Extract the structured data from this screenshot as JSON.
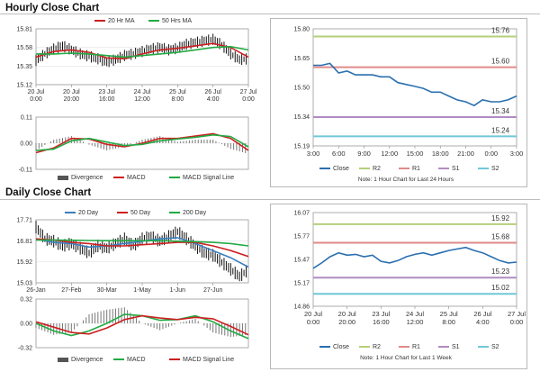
{
  "sections": {
    "hourly": {
      "title": "Hourly Close Chart"
    },
    "daily": {
      "title": "Daily Close Chart"
    }
  },
  "chart_data": [
    {
      "id": "hourly_price_ma",
      "type": "line",
      "y_ticks": [
        "15.81",
        "15.58",
        "15.35",
        "15.12"
      ],
      "ylim": [
        15.12,
        15.81
      ],
      "x_ticks": [
        [
          "20 Jul",
          "0:00"
        ],
        [
          "20 Jul",
          "20:00"
        ],
        [
          "23 Jul",
          "16:00"
        ],
        [
          "24 Jul",
          "12:00"
        ],
        [
          "25 Jul",
          "8:00"
        ],
        [
          "26 Jul",
          "4:00"
        ],
        [
          "27 Jul",
          "0:00"
        ]
      ],
      "x_tick_pos": [
        0,
        1,
        2,
        3,
        4,
        5,
        6
      ],
      "legend": [
        "20 Hr MA",
        "50 Hrs MA"
      ],
      "series": [
        {
          "name": "20 Hr MA",
          "color": "#cc2020",
          "x": [
            0,
            0.5,
            1,
            1.5,
            2,
            2.5,
            3,
            3.5,
            4,
            4.5,
            5,
            5.5,
            6
          ],
          "values": [
            15.46,
            15.53,
            15.55,
            15.52,
            15.45,
            15.44,
            15.5,
            15.55,
            15.57,
            15.6,
            15.63,
            15.58,
            15.46
          ]
        },
        {
          "name": "50 Hrs MA",
          "color": "#22aa44",
          "x": [
            0,
            0.5,
            1,
            1.5,
            2,
            2.5,
            3,
            3.5,
            4,
            4.5,
            5,
            5.5,
            6
          ],
          "values": [
            15.5,
            15.5,
            15.51,
            15.5,
            15.48,
            15.46,
            15.48,
            15.5,
            15.52,
            15.55,
            15.58,
            15.59,
            15.55
          ]
        }
      ],
      "price": {
        "x": [
          0,
          0.25,
          0.5,
          0.75,
          1,
          1.25,
          1.5,
          1.75,
          2,
          2.25,
          2.5,
          2.75,
          3,
          3.25,
          3.5,
          3.75,
          4,
          4.25,
          4.5,
          4.75,
          5,
          5.25,
          5.5,
          5.75,
          6
        ],
        "values": [
          15.42,
          15.5,
          15.56,
          15.6,
          15.55,
          15.5,
          15.47,
          15.44,
          15.4,
          15.43,
          15.48,
          15.5,
          15.53,
          15.56,
          15.58,
          15.55,
          15.57,
          15.62,
          15.64,
          15.66,
          15.68,
          15.61,
          15.5,
          15.43,
          15.44
        ]
      }
    },
    {
      "id": "hourly_macd",
      "type": "line",
      "y_ticks": [
        "0.11",
        "0.00",
        "-0.11"
      ],
      "ylim": [
        -0.11,
        0.11
      ],
      "legend": [
        "Divergence",
        "MACD",
        "MACD Signal Line"
      ],
      "x": [
        0,
        0.5,
        1,
        1.5,
        2,
        2.5,
        3,
        3.5,
        4,
        4.5,
        5,
        5.5,
        6
      ],
      "series": [
        {
          "name": "MACD",
          "color": "#cc2020",
          "values": [
            -0.04,
            -0.02,
            0.02,
            0.018,
            -0.005,
            -0.015,
            0.0,
            0.02,
            0.02,
            0.03,
            0.04,
            0.02,
            -0.03
          ]
        },
        {
          "name": "MACD Signal Line",
          "color": "#22aa44",
          "values": [
            -0.03,
            -0.025,
            0.01,
            0.02,
            0.005,
            -0.01,
            -0.005,
            0.01,
            0.018,
            0.025,
            0.035,
            0.028,
            -0.015
          ]
        }
      ]
    },
    {
      "id": "hourly_pivot",
      "type": "line",
      "y_ticks": [
        "15.80",
        "15.65",
        "15.50",
        "15.34",
        "15.19"
      ],
      "ylim": [
        15.19,
        15.8
      ],
      "x_ticks": [
        "3:00",
        "6:00",
        "9:00",
        "12:00",
        "15:00",
        "18:00",
        "21:00",
        "0:00",
        "3:00"
      ],
      "levels": [
        {
          "name": "R2",
          "value": 15.76,
          "label": "15.76",
          "color": "#b5cf7a"
        },
        {
          "name": "R1",
          "value": 15.6,
          "label": "15.60",
          "color": "#e08a8a"
        },
        {
          "name": "S1",
          "value": 15.34,
          "label": "15.34",
          "color": "#b08cc0"
        },
        {
          "name": "S2",
          "value": 15.24,
          "label": "15.24",
          "color": "#6fc8d8"
        }
      ],
      "close": {
        "name": "Close",
        "color": "#2a6fb0",
        "x": [
          0,
          0.33,
          0.66,
          1,
          1.33,
          1.66,
          2,
          2.33,
          2.66,
          3,
          3.33,
          3.66,
          4,
          4.33,
          4.66,
          5,
          5.33,
          5.66,
          6,
          6.33,
          6.66,
          7,
          7.33,
          7.66,
          8
        ],
        "values": [
          15.61,
          15.61,
          15.62,
          15.57,
          15.58,
          15.56,
          15.56,
          15.56,
          15.55,
          15.55,
          15.52,
          15.51,
          15.5,
          15.49,
          15.47,
          15.47,
          15.45,
          15.43,
          15.42,
          15.4,
          15.43,
          15.42,
          15.42,
          15.43,
          15.45
        ]
      },
      "legend": [
        "Close",
        "R2",
        "R1",
        "S1",
        "S2"
      ],
      "note": "Note: 1 Hour Chart for Last 24 Hours"
    },
    {
      "id": "daily_price_ma",
      "type": "line",
      "y_ticks": [
        "17.71",
        "16.81",
        "15.92",
        "15.03"
      ],
      "ylim": [
        15.03,
        17.71
      ],
      "x_ticks": [
        "26-Jan",
        "27-Feb",
        "30-Mar",
        "1-May",
        "1-Jun",
        "27-Jun"
      ],
      "x_tick_pos": [
        0,
        1,
        2,
        3,
        4,
        5
      ],
      "legend": [
        "20 Day",
        "50 Day",
        "200 Day"
      ],
      "series": [
        {
          "name": "20 Day",
          "color": "#3a7fc0",
          "x": [
            0,
            0.5,
            1,
            1.5,
            2,
            2.5,
            3,
            3.5,
            4,
            4.5,
            5,
            5.5,
            6
          ],
          "values": [
            16.9,
            16.75,
            16.7,
            16.55,
            16.6,
            16.7,
            16.8,
            16.9,
            16.95,
            16.7,
            16.4,
            16.1,
            15.7
          ]
        },
        {
          "name": "50 Day",
          "color": "#cc2020",
          "x": [
            0,
            0.5,
            1,
            1.5,
            2,
            2.5,
            3,
            3.5,
            4,
            4.5,
            5,
            5.5,
            6
          ],
          "values": [
            16.9,
            16.85,
            16.75,
            16.7,
            16.6,
            16.6,
            16.65,
            16.7,
            16.75,
            16.75,
            16.6,
            16.4,
            16.15
          ]
        },
        {
          "name": "200 Day",
          "color": "#22aa44",
          "x": [
            0,
            0.5,
            1,
            1.5,
            2,
            2.5,
            3,
            3.5,
            4,
            4.5,
            5,
            5.5,
            6
          ],
          "values": [
            16.85,
            16.85,
            16.84,
            16.83,
            16.82,
            16.82,
            16.82,
            16.82,
            16.8,
            16.78,
            16.75,
            16.7,
            16.6
          ]
        }
      ],
      "price": {
        "x": [
          0,
          0.25,
          0.5,
          0.75,
          1,
          1.25,
          1.5,
          1.75,
          2,
          2.25,
          2.5,
          2.75,
          3,
          3.25,
          3.5,
          3.75,
          4,
          4.25,
          4.5,
          4.75,
          5,
          5.25,
          5.5,
          5.75,
          6
        ],
        "values": [
          17.4,
          16.9,
          16.8,
          16.6,
          16.7,
          16.5,
          16.3,
          16.6,
          16.5,
          16.7,
          16.9,
          16.6,
          16.9,
          17.0,
          16.8,
          17.0,
          17.2,
          16.9,
          16.6,
          16.3,
          16.2,
          15.9,
          15.6,
          15.3,
          15.6
        ]
      }
    },
    {
      "id": "daily_macd",
      "type": "line",
      "y_ticks": [
        "0.32",
        "0.00",
        "-0.32"
      ],
      "ylim": [
        -0.32,
        0.32
      ],
      "legend": [
        "Divergence",
        "MACD",
        "MACD Signal Line"
      ],
      "x": [
        0,
        0.5,
        1,
        1.5,
        2,
        2.5,
        3,
        3.5,
        4,
        4.5,
        5,
        5.5,
        6
      ],
      "series": [
        {
          "name": "MACD",
          "color": "#22aa44",
          "values": [
            0.0,
            -0.1,
            -0.16,
            -0.1,
            0.0,
            0.12,
            0.1,
            0.04,
            0.05,
            0.1,
            0.02,
            -0.1,
            -0.2
          ]
        },
        {
          "name": "MACD Signal Line",
          "color": "#cc2020",
          "values": [
            0.02,
            -0.05,
            -0.12,
            -0.14,
            -0.06,
            0.05,
            0.1,
            0.07,
            0.05,
            0.08,
            0.06,
            -0.04,
            -0.15
          ]
        }
      ]
    },
    {
      "id": "daily_pivot",
      "type": "line",
      "y_ticks": [
        "16.07",
        "15.77",
        "15.47",
        "15.17",
        "14.86"
      ],
      "ylim": [
        14.86,
        16.07
      ],
      "x_ticks": [
        [
          "20 Jul",
          "0:00"
        ],
        [
          "20 Jul",
          "20:00"
        ],
        [
          "23 Jul",
          "16:00"
        ],
        [
          "24 Jul",
          "12:00"
        ],
        [
          "25 Jul",
          "8:00"
        ],
        [
          "26 Jul",
          "4:00"
        ],
        [
          "27 Jul",
          "0:00"
        ]
      ],
      "levels": [
        {
          "name": "R2",
          "value": 15.92,
          "label": "15.92",
          "color": "#b5cf7a"
        },
        {
          "name": "R1",
          "value": 15.68,
          "label": "15.68",
          "color": "#e08a8a"
        },
        {
          "name": "S1",
          "value": 15.23,
          "label": "15.23",
          "color": "#b08cc0"
        },
        {
          "name": "S2",
          "value": 15.02,
          "label": "15.02",
          "color": "#6fc8d8"
        }
      ],
      "close": {
        "name": "Close",
        "color": "#2a6fb0",
        "x": [
          0,
          0.25,
          0.5,
          0.75,
          1,
          1.25,
          1.5,
          1.75,
          2,
          2.25,
          2.5,
          2.75,
          3,
          3.25,
          3.5,
          3.75,
          4,
          4.25,
          4.5,
          4.75,
          5,
          5.25,
          5.5,
          5.75,
          6
        ],
        "values": [
          15.35,
          15.42,
          15.5,
          15.55,
          15.52,
          15.53,
          15.5,
          15.52,
          15.44,
          15.42,
          15.45,
          15.5,
          15.53,
          15.55,
          15.52,
          15.55,
          15.58,
          15.6,
          15.62,
          15.58,
          15.55,
          15.5,
          15.45,
          15.42,
          15.43
        ]
      },
      "legend": [
        "Close",
        "R2",
        "R1",
        "S1",
        "S2"
      ],
      "note": "Note: 1 Hour Chart for Last 1 Week"
    }
  ]
}
